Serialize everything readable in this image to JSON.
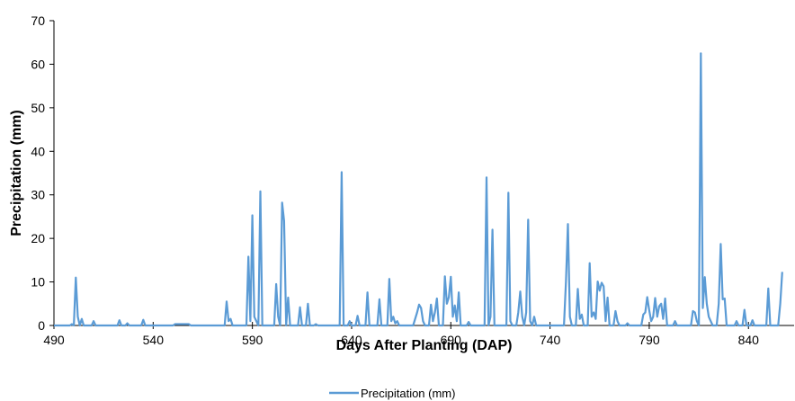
{
  "chart_data": {
    "type": "line",
    "title": "",
    "xlabel": "Days After Planting (DAP)",
    "ylabel": "Precipitation (mm)",
    "xlim": [
      490,
      863
    ],
    "ylim": [
      0,
      70
    ],
    "x_ticks": [
      490,
      540,
      590,
      640,
      690,
      740,
      790,
      840
    ],
    "y_ticks": [
      0,
      10,
      20,
      30,
      40,
      50,
      60,
      70
    ],
    "grid": false,
    "legend": "bottom",
    "colors": {
      "series": "#5b9bd5",
      "axis": "#000000"
    },
    "series": [
      {
        "name": "Precipitation (mm)",
        "points": [
          [
            490,
            0
          ],
          [
            498,
            0
          ],
          [
            499,
            0.3
          ],
          [
            500,
            0
          ],
          [
            501,
            11
          ],
          [
            502,
            2
          ],
          [
            503,
            0
          ],
          [
            504,
            1.5
          ],
          [
            505,
            0
          ],
          [
            509,
            0
          ],
          [
            510,
            1
          ],
          [
            511,
            0
          ],
          [
            522,
            0
          ],
          [
            523,
            1.2
          ],
          [
            524,
            0
          ],
          [
            526,
            0
          ],
          [
            527,
            0.5
          ],
          [
            528,
            0
          ],
          [
            534,
            0
          ],
          [
            535,
            1.3
          ],
          [
            536,
            0
          ],
          [
            550,
            0
          ],
          [
            551,
            0.3
          ],
          [
            558,
            0.3
          ],
          [
            559,
            0
          ],
          [
            576,
            0
          ],
          [
            577,
            5.5
          ],
          [
            578,
            1
          ],
          [
            579,
            1.5
          ],
          [
            580,
            0
          ],
          [
            587,
            0
          ],
          [
            588,
            15.8
          ],
          [
            589,
            1
          ],
          [
            590,
            25.3
          ],
          [
            591,
            2
          ],
          [
            593,
            0
          ],
          [
            594,
            30.8
          ],
          [
            595,
            0
          ],
          [
            601,
            0
          ],
          [
            602,
            9.5
          ],
          [
            603,
            2
          ],
          [
            604,
            0
          ],
          [
            605,
            28.2
          ],
          [
            606,
            24
          ],
          [
            607,
            0
          ],
          [
            608,
            6.4
          ],
          [
            609,
            0
          ],
          [
            613,
            0
          ],
          [
            614,
            4.2
          ],
          [
            615,
            0
          ],
          [
            617,
            0
          ],
          [
            618,
            5
          ],
          [
            619,
            0
          ],
          [
            621,
            0
          ],
          [
            622,
            0.3
          ],
          [
            623,
            0
          ],
          [
            634,
            0
          ],
          [
            635,
            35.2
          ],
          [
            636,
            0
          ],
          [
            638,
            0
          ],
          [
            639,
            1
          ],
          [
            640,
            0
          ],
          [
            642,
            0
          ],
          [
            643,
            2.2
          ],
          [
            644,
            0
          ],
          [
            647,
            0
          ],
          [
            648,
            7.6
          ],
          [
            649,
            0
          ],
          [
            653,
            0
          ],
          [
            654,
            6
          ],
          [
            655,
            0
          ],
          [
            658,
            0
          ],
          [
            659,
            10.7
          ],
          [
            660,
            1
          ],
          [
            661,
            2
          ],
          [
            662,
            0.5
          ],
          [
            663,
            1
          ],
          [
            664,
            0
          ],
          [
            671,
            0
          ],
          [
            673,
            3
          ],
          [
            674,
            4.8
          ],
          [
            675,
            4
          ],
          [
            676,
            1
          ],
          [
            677,
            0
          ],
          [
            679,
            0
          ],
          [
            680,
            4.8
          ],
          [
            681,
            1
          ],
          [
            682,
            3
          ],
          [
            683,
            6.2
          ],
          [
            684,
            0
          ],
          [
            686,
            0
          ],
          [
            687,
            11.3
          ],
          [
            688,
            5
          ],
          [
            689,
            6.5
          ],
          [
            690,
            11.2
          ],
          [
            691,
            2
          ],
          [
            692,
            4.6
          ],
          [
            693,
            1
          ],
          [
            694,
            7.6
          ],
          [
            695,
            0
          ],
          [
            698,
            0
          ],
          [
            699,
            0.8
          ],
          [
            700,
            0
          ],
          [
            707,
            0
          ],
          [
            708,
            34
          ],
          [
            709,
            0
          ],
          [
            710,
            2
          ],
          [
            711,
            22
          ],
          [
            712,
            0
          ],
          [
            718,
            0
          ],
          [
            719,
            30.5
          ],
          [
            720,
            1
          ],
          [
            721,
            0
          ],
          [
            723,
            0
          ],
          [
            724,
            3
          ],
          [
            725,
            7.8
          ],
          [
            726,
            2
          ],
          [
            727,
            0
          ],
          [
            728,
            3
          ],
          [
            729,
            24.3
          ],
          [
            730,
            1
          ],
          [
            731,
            0
          ],
          [
            732,
            2
          ],
          [
            733,
            0
          ],
          [
            747,
            0
          ],
          [
            748,
            10
          ],
          [
            749,
            23.3
          ],
          [
            750,
            2
          ],
          [
            751,
            0
          ],
          [
            753,
            0
          ],
          [
            754,
            8.4
          ],
          [
            755,
            1.5
          ],
          [
            756,
            2.5
          ],
          [
            757,
            0
          ],
          [
            759,
            0
          ],
          [
            760,
            14.3
          ],
          [
            761,
            2
          ],
          [
            762,
            3
          ],
          [
            763,
            1.5
          ],
          [
            764,
            10.1
          ],
          [
            765,
            8
          ],
          [
            766,
            9.8
          ],
          [
            767,
            9
          ],
          [
            768,
            1
          ],
          [
            769,
            6.4
          ],
          [
            770,
            0
          ],
          [
            772,
            0
          ],
          [
            773,
            3.3
          ],
          [
            774,
            1
          ],
          [
            775,
            0
          ],
          [
            778,
            0
          ],
          [
            779,
            0.5
          ],
          [
            780,
            0
          ],
          [
            786,
            0
          ],
          [
            787,
            2.5
          ],
          [
            788,
            3
          ],
          [
            789,
            6.5
          ],
          [
            790,
            3.5
          ],
          [
            791,
            1
          ],
          [
            792,
            2
          ],
          [
            793,
            6.3
          ],
          [
            794,
            2
          ],
          [
            795,
            4.4
          ],
          [
            796,
            5
          ],
          [
            797,
            1.5
          ],
          [
            798,
            6.2
          ],
          [
            799,
            0
          ],
          [
            802,
            0
          ],
          [
            803,
            1
          ],
          [
            804,
            0
          ],
          [
            811,
            0
          ],
          [
            812,
            3.3
          ],
          [
            813,
            3
          ],
          [
            814,
            1
          ],
          [
            815,
            0
          ],
          [
            816,
            62.5
          ],
          [
            817,
            4
          ],
          [
            818,
            11.1
          ],
          [
            819,
            5
          ],
          [
            820,
            2
          ],
          [
            821,
            1
          ],
          [
            822,
            0
          ],
          [
            824,
            0
          ],
          [
            825,
            5
          ],
          [
            826,
            18.7
          ],
          [
            827,
            6
          ],
          [
            828,
            6.2
          ],
          [
            829,
            0
          ],
          [
            833,
            0
          ],
          [
            834,
            1
          ],
          [
            835,
            0
          ],
          [
            837,
            0
          ],
          [
            838,
            3.6
          ],
          [
            839,
            0
          ],
          [
            841,
            0
          ],
          [
            842,
            1.2
          ],
          [
            843,
            0
          ],
          [
            849,
            0
          ],
          [
            850,
            8.5
          ],
          [
            851,
            0
          ],
          [
            855,
            0
          ],
          [
            856,
            5
          ],
          [
            857,
            12.3
          ]
        ]
      }
    ]
  }
}
